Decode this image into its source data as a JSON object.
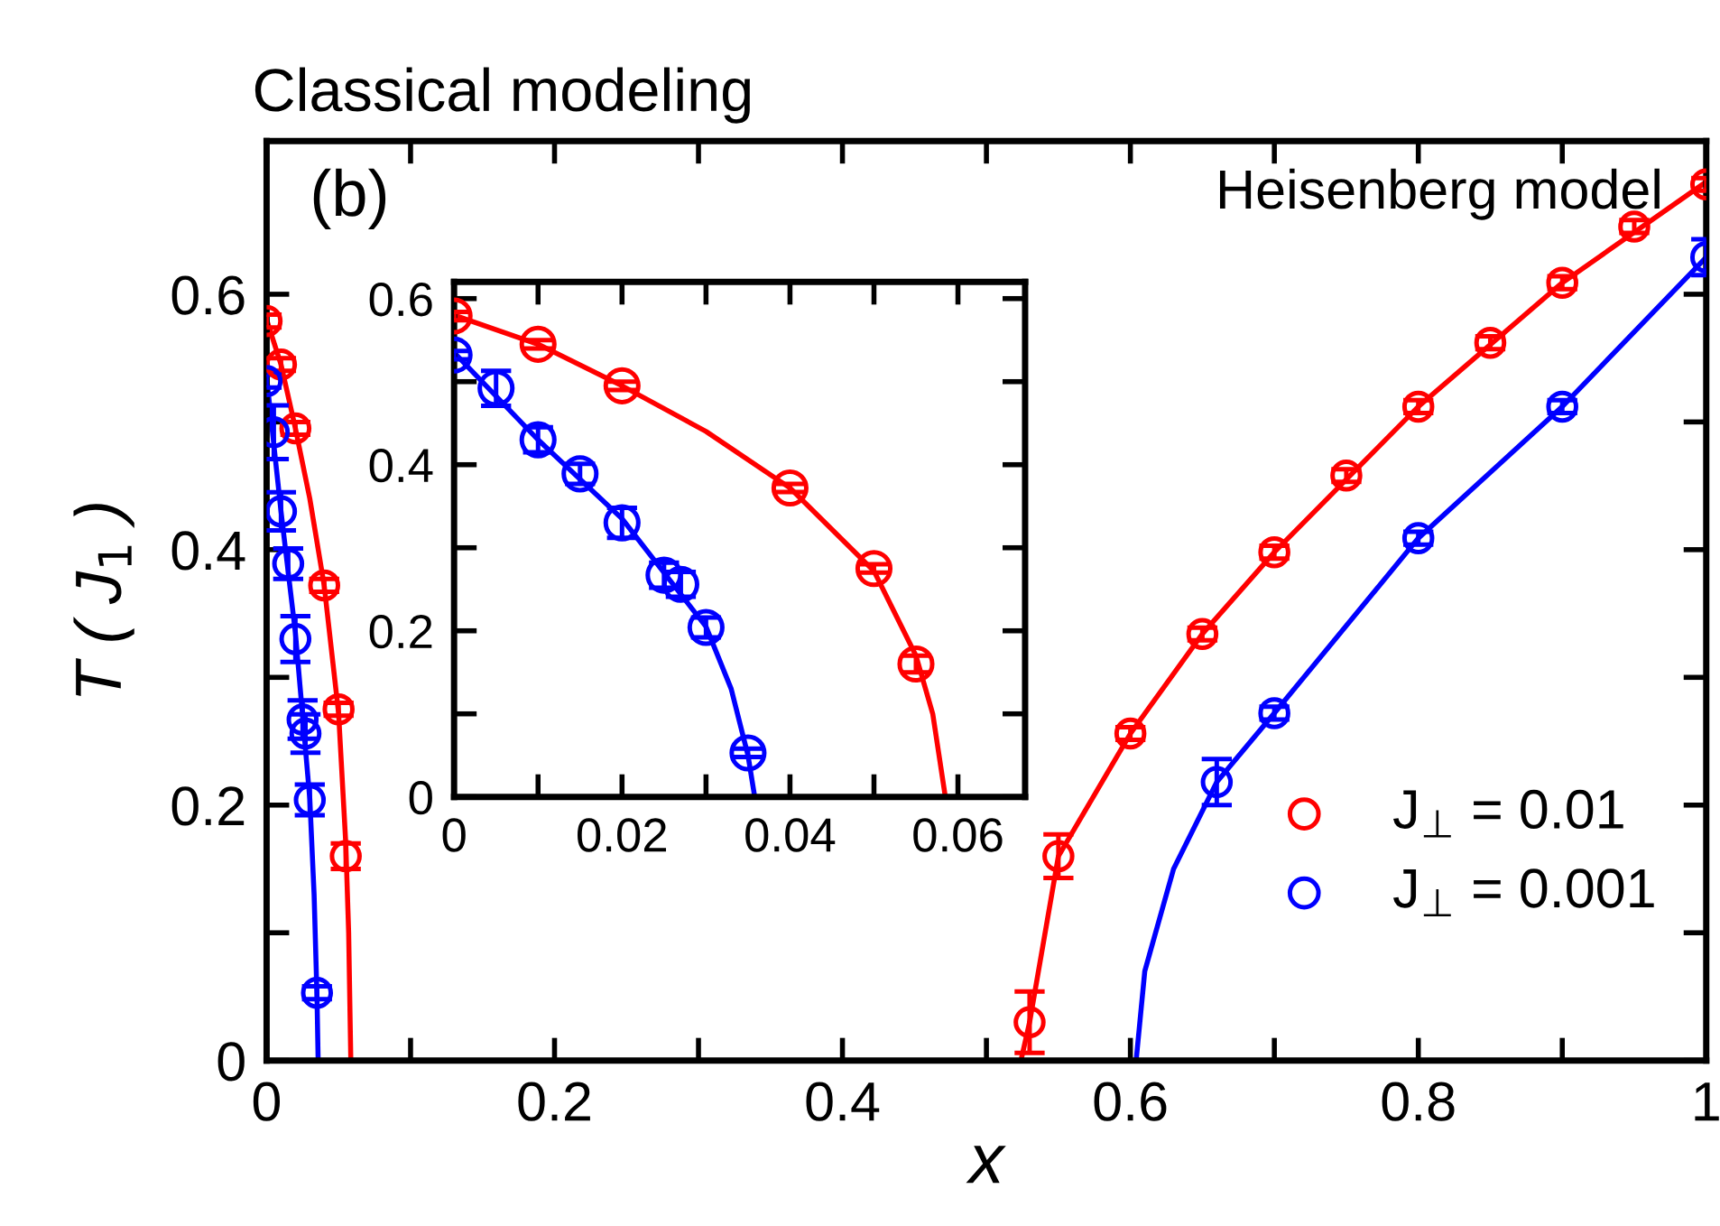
{
  "chart_data": [
    {
      "type": "scatter",
      "title": "Classical modeling",
      "xlabel": "x",
      "ylabel": "T ( J$_{1}$ )",
      "annotations": [
        "(b)",
        "Heisenberg model"
      ],
      "xlim": [
        0,
        1
      ],
      "ylim": [
        0,
        0.72
      ],
      "xticks": [
        0,
        {
          "value": 0.1,
          "label": null
        },
        0.2,
        {
          "value": 0.3,
          "label": null
        },
        0.4,
        {
          "value": 0.5,
          "label": null
        },
        0.6,
        {
          "value": 0.7,
          "label": null
        },
        0.8,
        {
          "value": 0.9,
          "label": null
        },
        1
      ],
      "yticks": [
        0,
        {
          "value": 0.1,
          "label": null
        },
        0.2,
        {
          "value": 0.3,
          "label": null
        },
        0.4,
        {
          "value": 0.5,
          "label": null
        },
        0.6
      ],
      "marker": "circle",
      "legend": "bottom right",
      "grid": false,
      "series": [
        {
          "name": "J$_{⊥}$ = 0.01",
          "color": "#ff0000",
          "x": [
            0,
            0.01,
            0.02,
            0.04,
            0.05,
            0.055,
            0.53,
            0.55,
            0.6,
            0.65,
            0.7,
            0.75,
            0.8,
            0.85,
            0.9,
            0.95,
            1.0
          ],
          "values": [
            0.579,
            0.545,
            0.495,
            0.372,
            0.275,
            0.16,
            0.03,
            0.16,
            0.256,
            0.334,
            0.398,
            0.458,
            0.512,
            0.562,
            0.609,
            0.653,
            0.686
          ],
          "errors": [
            0.005,
            0.005,
            0.005,
            0.005,
            0.005,
            0.01,
            0.024,
            0.017,
            0.005,
            0.005,
            0.005,
            0.005,
            0.005,
            0.005,
            0.005,
            0.005,
            0.005
          ]
        },
        {
          "name": "J$_{⊥}$ = 0.001",
          "color": "#0000ff",
          "x": [
            0,
            0.005,
            0.01,
            0.015,
            0.02,
            0.025,
            0.027,
            0.03,
            0.035,
            0.66,
            0.7,
            0.8,
            0.9,
            1.0
          ],
          "values": [
            0.532,
            0.492,
            0.43,
            0.389,
            0.33,
            0.267,
            0.256,
            0.204,
            0.053,
            0.218,
            0.272,
            0.409,
            0.512,
            0.629
          ],
          "errors": [
            0.005,
            0.021,
            0.015,
            0.012,
            0.018,
            0.015,
            0.015,
            0.012,
            0.005,
            0.018,
            0.005,
            0.005,
            0.005,
            0.014
          ]
        },
        {
          "type": "line",
          "marker": "none",
          "color": "#ff0000",
          "x": [
            0,
            0.01,
            0.02,
            0.03,
            0.04,
            0.05,
            0.055,
            0.057,
            0.0585
          ],
          "values": [
            0.58,
            0.545,
            0.495,
            0.44,
            0.372,
            0.272,
            0.17,
            0.1,
            0
          ]
        },
        {
          "type": "line",
          "marker": "none",
          "color": "#0000ff",
          "x": [
            0,
            0.01,
            0.02,
            0.03,
            0.033,
            0.035,
            0.0358
          ],
          "values": [
            0.535,
            0.43,
            0.335,
            0.205,
            0.13,
            0.05,
            0
          ]
        },
        {
          "type": "line",
          "marker": "none",
          "color": "#ff0000",
          "x": [
            0.524,
            0.53,
            0.55,
            0.6,
            0.65,
            0.7,
            0.8,
            0.9,
            1.0
          ],
          "values": [
            0,
            0.03,
            0.16,
            0.256,
            0.334,
            0.398,
            0.512,
            0.609,
            0.688
          ]
        },
        {
          "type": "line",
          "marker": "none",
          "color": "#0000ff",
          "x": [
            0.604,
            0.61,
            0.63,
            0.66,
            0.7,
            0.8,
            0.9,
            1.0
          ],
          "values": [
            0,
            0.07,
            0.15,
            0.218,
            0.272,
            0.409,
            0.512,
            0.629
          ]
        }
      ]
    },
    {
      "type": "scatter",
      "xlim": [
        0,
        0.068
      ],
      "ylim": [
        0,
        0.62
      ],
      "xticks": [
        0,
        {
          "value": 0.01,
          "label": null
        },
        0.02,
        {
          "value": 0.03,
          "label": null
        },
        0.04,
        {
          "value": 0.05,
          "label": null
        },
        0.06
      ],
      "yticks": [
        0,
        {
          "value": 0.1,
          "label": null
        },
        0.2,
        {
          "value": 0.3,
          "label": null
        },
        0.4,
        {
          "value": 0.5,
          "label": null
        },
        0.6
      ],
      "marker": "circle",
      "grid": false,
      "series": [
        {
          "color": "#ff0000",
          "x": [
            0,
            0.01,
            0.02,
            0.04,
            0.05,
            0.055
          ],
          "values": [
            0.579,
            0.545,
            0.495,
            0.372,
            0.275,
            0.16
          ],
          "errors": [
            0.005,
            0.005,
            0.005,
            0.005,
            0.005,
            0.01
          ]
        },
        {
          "color": "#0000ff",
          "x": [
            0,
            0.005,
            0.01,
            0.015,
            0.02,
            0.025,
            0.027,
            0.03,
            0.035
          ],
          "values": [
            0.532,
            0.492,
            0.43,
            0.389,
            0.33,
            0.267,
            0.256,
            0.204,
            0.053
          ],
          "errors": [
            0.005,
            0.021,
            0.015,
            0.012,
            0.018,
            0.015,
            0.015,
            0.012,
            0.005
          ]
        },
        {
          "type": "line",
          "marker": "none",
          "color": "#ff0000",
          "x": [
            0,
            0.01,
            0.02,
            0.03,
            0.04,
            0.05,
            0.055,
            0.057,
            0.0585
          ],
          "values": [
            0.58,
            0.545,
            0.495,
            0.44,
            0.372,
            0.272,
            0.17,
            0.1,
            0
          ]
        },
        {
          "type": "line",
          "marker": "none",
          "color": "#0000ff",
          "x": [
            0,
            0.01,
            0.02,
            0.03,
            0.033,
            0.035,
            0.0358
          ],
          "values": [
            0.535,
            0.43,
            0.335,
            0.205,
            0.13,
            0.05,
            0
          ]
        }
      ]
    }
  ]
}
